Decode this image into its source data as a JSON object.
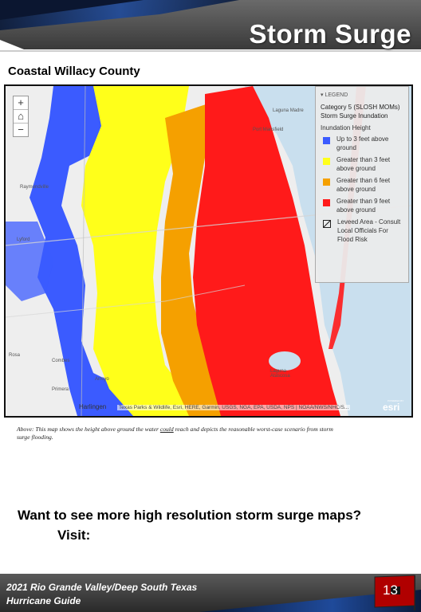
{
  "header": {
    "title": "Storm Surge"
  },
  "subtitle": "Coastal Willacy County",
  "map": {
    "zoom_in": "+",
    "home": "⌂",
    "zoom_out": "−",
    "place_labels": [
      "Laguna Madre",
      "Port Mansfield",
      "Raymondville",
      "Lyford",
      "Rosa",
      "Combes",
      "Primera",
      "Harlingen",
      "Laguna Atascosa",
      "Arroyo"
    ],
    "legend": {
      "header": "LEGEND",
      "title": "Category 5 (SLOSH MOMs) Storm Surge Inundation",
      "subtitle": "Inundation Height",
      "items": [
        {
          "label": "Up to 3 feet above ground",
          "color": "#3b5bff"
        },
        {
          "label": "Greater than 3 feet above ground",
          "color": "#ffff1a"
        },
        {
          "label": "Greater than 6 feet above ground",
          "color": "#f5a000"
        },
        {
          "label": "Greater than 9 feet above ground",
          "color": "#ff1a1a"
        }
      ],
      "levee_label": "Leveed Area - Consult Local Officials For Flood Risk"
    },
    "attribution": "Texas Parks & Wildlife, Esri, HERE, Garmin, USGS, NGA, EPA, USDA, NPS | NOAA/NWS/NHC/S...",
    "logo_text": "esri",
    "logo_small": "POWERED BY"
  },
  "caption": {
    "part1": "Above: This map shows the height above ground the water ",
    "emph": "could",
    "part2": " reach and depicts the reasonable worst-case scenario from storm surge flooding."
  },
  "cta": "Want to see more high resolution storm surge maps?",
  "visit": "Visit:",
  "footer": {
    "line1": "2021 Rio Grande Valley/Deep South Texas",
    "line2": "Hurricane Guide",
    "page": "13"
  }
}
